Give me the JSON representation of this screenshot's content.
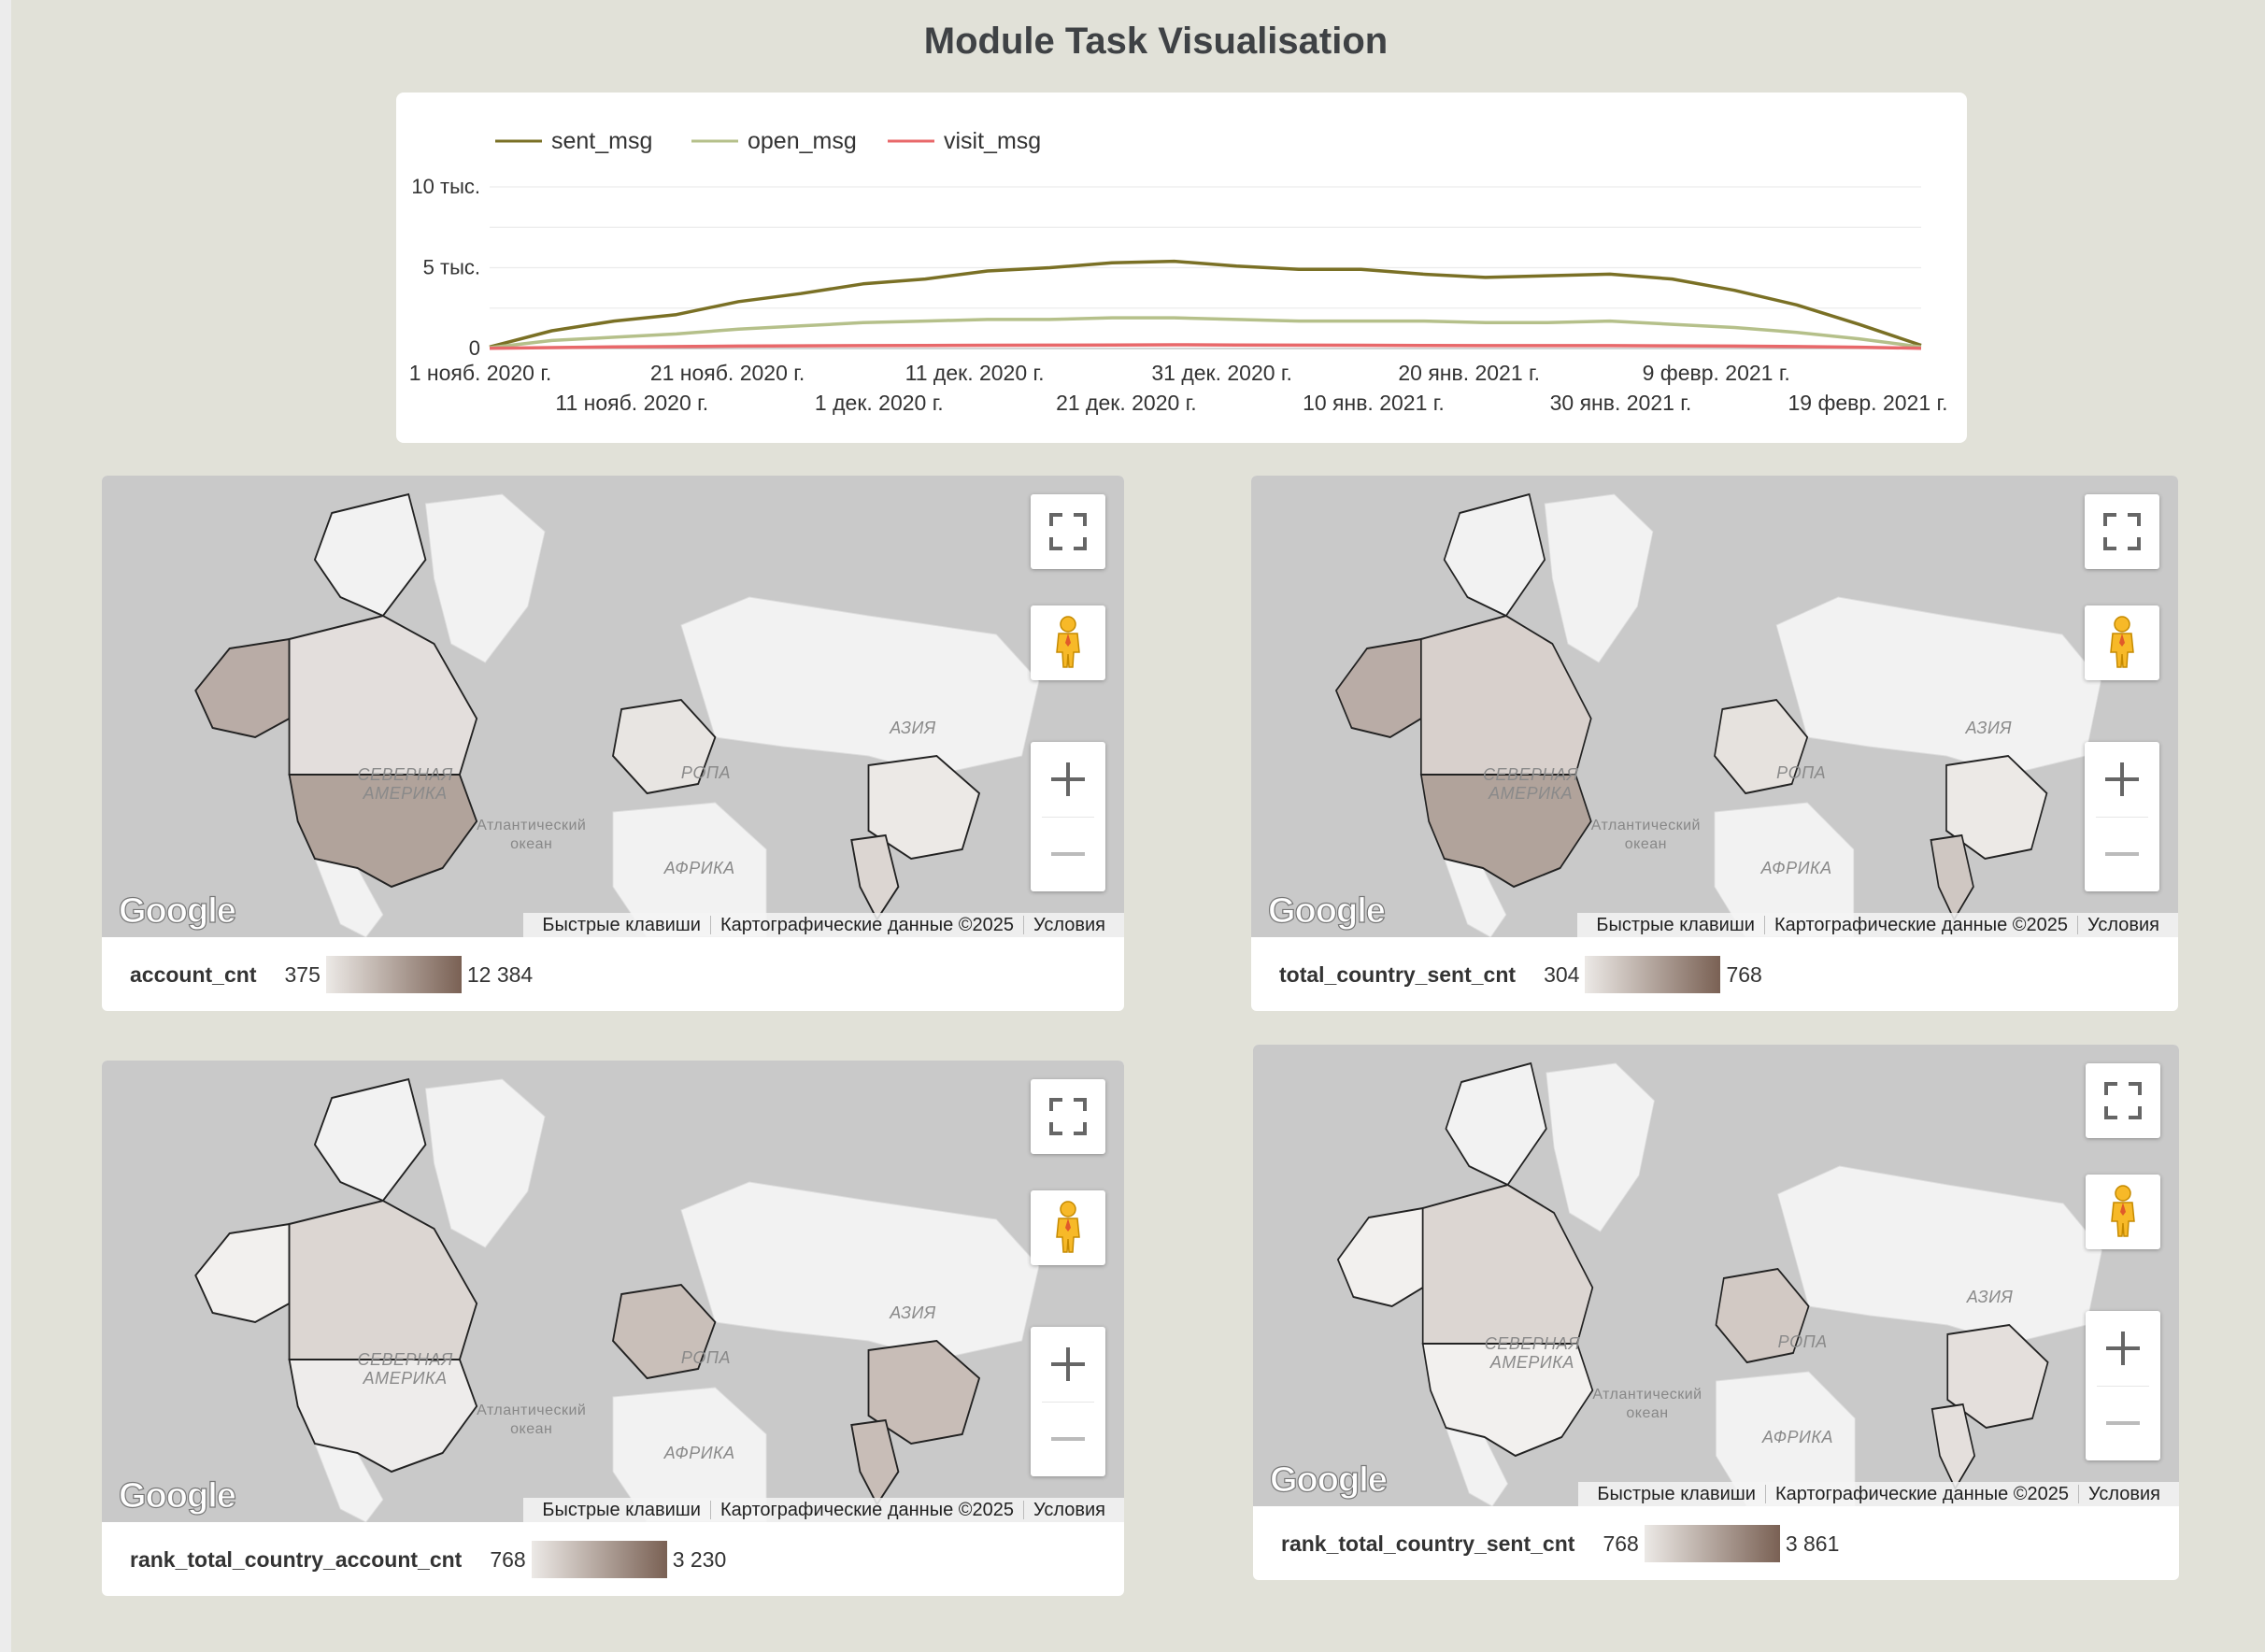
{
  "page_title": "Module Task Visualisation",
  "colors": {
    "background": "#e1e1d8",
    "sent_msg": "#7a7025",
    "open_msg": "#b5c08a",
    "visit_msg": "#e8686a",
    "legend_low": "#ece9e6",
    "legend_high": "#7a6154"
  },
  "chart_data": {
    "type": "line",
    "title": "",
    "xlabel": "",
    "ylabel": "",
    "legend_position": "top-left",
    "grid": true,
    "ylim": [
      0,
      10000
    ],
    "y_ticks": [
      "0",
      "5 тыс.",
      "10 тыс."
    ],
    "x_ticks_row1": [
      "1 нояб. 2020 г.",
      "21 нояб. 2020 г.",
      "11 дек. 2020 г.",
      "31 дек. 2020 г.",
      "20 янв. 2021 г.",
      "9 февр. 2021 г."
    ],
    "x_ticks_row2": [
      "11 нояб. 2020 г.",
      "1 дек. 2020 г.",
      "21 дек. 2020 г.",
      "10 янв. 2021 г.",
      "30 янв. 2021 г.",
      "19 февр. 2021 г."
    ],
    "x": [
      "2020-11-01",
      "2020-11-06",
      "2020-11-11",
      "2020-11-16",
      "2020-11-21",
      "2020-11-26",
      "2020-12-01",
      "2020-12-06",
      "2020-12-11",
      "2020-12-16",
      "2020-12-21",
      "2020-12-26",
      "2020-12-31",
      "2021-01-05",
      "2021-01-10",
      "2021-01-15",
      "2021-01-20",
      "2021-01-25",
      "2021-01-30",
      "2021-02-04",
      "2021-02-09",
      "2021-02-14",
      "2021-02-19",
      "2021-02-24"
    ],
    "series": [
      {
        "name": "sent_msg",
        "values": [
          100,
          1100,
          1700,
          2100,
          2900,
          3400,
          4000,
          4300,
          4800,
          5000,
          5300,
          5400,
          5100,
          4900,
          4900,
          4600,
          4400,
          4500,
          4600,
          4300,
          3600,
          2700,
          1500,
          200
        ]
      },
      {
        "name": "open_msg",
        "values": [
          50,
          500,
          700,
          900,
          1200,
          1400,
          1600,
          1700,
          1800,
          1800,
          1900,
          1900,
          1800,
          1700,
          1700,
          1700,
          1600,
          1600,
          1700,
          1500,
          1300,
          1000,
          600,
          100
        ]
      },
      {
        "name": "visit_msg",
        "values": [
          10,
          60,
          100,
          120,
          150,
          170,
          180,
          190,
          200,
          210,
          220,
          230,
          220,
          210,
          200,
          190,
          180,
          180,
          180,
          170,
          150,
          120,
          80,
          20
        ]
      }
    ]
  },
  "map_common": {
    "shortcuts": "Быстрые клавиши",
    "map_data": "Картографические данные ©2025",
    "terms": "Условия",
    "google": "Google",
    "label_north_america": [
      "СЕВЕРНАЯ",
      "АМЕРИКА"
    ],
    "label_europe": "РОПА",
    "label_asia": "АЗИЯ",
    "label_africa": "АФРИКА",
    "label_atlantic": [
      "Атлантический",
      "океан"
    ]
  },
  "maps": [
    {
      "metric": "account_cnt",
      "min": "375",
      "max": "12 384",
      "fills": {
        "alaska": "#b9aca6",
        "canada": "#e3dedc",
        "usa": "#b1a39b",
        "europe": "#e8e5e2",
        "china": "#ece9e6",
        "india": "#dcd6d2"
      }
    },
    {
      "metric": "total_country_sent_cnt",
      "min": "304",
      "max": "768",
      "fills": {
        "alaska": "#b9aca6",
        "canada": "#d8d0cc",
        "usa": "#b1a39b",
        "europe": "#e6e2de",
        "china": "#ece9e6",
        "india": "#cfc7c2"
      }
    },
    {
      "metric": "rank_total_country_account_cnt",
      "min": "768",
      "max": "3 230",
      "fills": {
        "alaska": "#f2f0ee",
        "canada": "#dcd6d2",
        "usa": "#eeeceb",
        "europe": "#c9bfb9",
        "china": "#c8bdb7",
        "india": "#c8bdb7"
      }
    },
    {
      "metric": "rank_total_country_sent_cnt",
      "min": "768",
      "max": "3 861",
      "fills": {
        "alaska": "#f2f0ee",
        "canada": "#dcd6d2",
        "usa": "#f2f0ee",
        "europe": "#d2c9c4",
        "china": "#e4dfdc",
        "india": "#e4dfdc"
      }
    }
  ]
}
